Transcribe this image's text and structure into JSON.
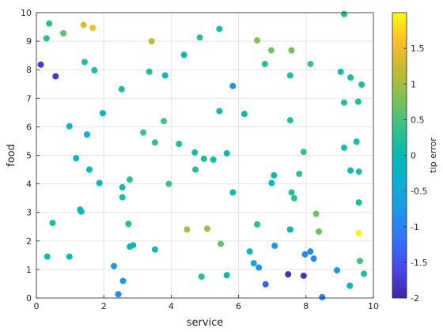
{
  "chart_data": {
    "type": "scatter",
    "xlabel": "service",
    "ylabel": "food",
    "colorbar_label": "tip error",
    "xlim": [
      0,
      10
    ],
    "ylim": [
      0,
      10
    ],
    "clim": [
      -2,
      2
    ],
    "grid": true,
    "x_ticks": [
      0,
      2,
      4,
      6,
      8,
      10
    ],
    "y_ticks": [
      0,
      1,
      2,
      3,
      4,
      5,
      6,
      7,
      8,
      9,
      10
    ],
    "colorbar_ticks": [
      -2,
      -1.5,
      -1,
      -0.5,
      0,
      0.5,
      1,
      1.5
    ],
    "colormap": "parula",
    "points": [
      {
        "x": 0.13,
        "y": 8.18,
        "c": -1.75
      },
      {
        "x": 0.3,
        "y": 9.1,
        "c": 0.25
      },
      {
        "x": 0.38,
        "y": 9.62,
        "c": 0.3
      },
      {
        "x": 0.32,
        "y": 1.45,
        "c": 0.05
      },
      {
        "x": 0.48,
        "y": 2.63,
        "c": 0.15
      },
      {
        "x": 0.57,
        "y": 7.77,
        "c": -1.8
      },
      {
        "x": 0.8,
        "y": 9.28,
        "c": 0.6
      },
      {
        "x": 0.98,
        "y": 6.02,
        "c": -0.1
      },
      {
        "x": 0.98,
        "y": 1.45,
        "c": 0.05
      },
      {
        "x": 1.18,
        "y": 4.9,
        "c": -0.2
      },
      {
        "x": 1.3,
        "y": 3.1,
        "c": -0.1
      },
      {
        "x": 1.33,
        "y": 3.03,
        "c": 0.0
      },
      {
        "x": 1.4,
        "y": 9.57,
        "c": 1.35
      },
      {
        "x": 1.43,
        "y": 8.27,
        "c": 0.2
      },
      {
        "x": 1.5,
        "y": 5.73,
        "c": -0.4
      },
      {
        "x": 1.57,
        "y": 4.5,
        "c": -0.1
      },
      {
        "x": 1.67,
        "y": 9.47,
        "c": 1.6
      },
      {
        "x": 1.72,
        "y": 7.98,
        "c": 0.15
      },
      {
        "x": 1.87,
        "y": 4.03,
        "c": -0.35
      },
      {
        "x": 1.97,
        "y": 6.48,
        "c": -0.2
      },
      {
        "x": 2.3,
        "y": 1.12,
        "c": -0.7
      },
      {
        "x": 2.43,
        "y": 0.13,
        "c": -0.95
      },
      {
        "x": 2.53,
        "y": 7.32,
        "c": 0.15
      },
      {
        "x": 2.55,
        "y": 3.88,
        "c": 0.05
      },
      {
        "x": 2.55,
        "y": 3.53,
        "c": 0.15
      },
      {
        "x": 2.57,
        "y": 0.6,
        "c": -0.75
      },
      {
        "x": 2.73,
        "y": 2.6,
        "c": 0.3
      },
      {
        "x": 2.77,
        "y": 4.15,
        "c": 0.3
      },
      {
        "x": 2.77,
        "y": 1.8,
        "c": 0.05
      },
      {
        "x": 2.87,
        "y": 1.85,
        "c": -0.05
      },
      {
        "x": 3.17,
        "y": 5.8,
        "c": 0.45
      },
      {
        "x": 3.35,
        "y": 7.93,
        "c": 0.2
      },
      {
        "x": 3.42,
        "y": 9.0,
        "c": 1.2
      },
      {
        "x": 3.52,
        "y": 5.45,
        "c": 0.35
      },
      {
        "x": 3.52,
        "y": 1.7,
        "c": 0.0
      },
      {
        "x": 3.78,
        "y": 6.2,
        "c": 0.45
      },
      {
        "x": 3.82,
        "y": 7.8,
        "c": 0.0
      },
      {
        "x": 3.93,
        "y": 4.0,
        "c": 0.45
      },
      {
        "x": 4.23,
        "y": 5.4,
        "c": 0.2
      },
      {
        "x": 4.38,
        "y": 8.52,
        "c": 0.0
      },
      {
        "x": 4.47,
        "y": 2.4,
        "c": 1.0
      },
      {
        "x": 4.7,
        "y": 5.1,
        "c": 0.2
      },
      {
        "x": 4.72,
        "y": 4.5,
        "c": 0.25
      },
      {
        "x": 4.85,
        "y": 9.13,
        "c": 0.25
      },
      {
        "x": 4.9,
        "y": 0.75,
        "c": 0.25
      },
      {
        "x": 4.97,
        "y": 4.88,
        "c": 0.2
      },
      {
        "x": 5.07,
        "y": 2.43,
        "c": 1.0
      },
      {
        "x": 5.25,
        "y": 4.85,
        "c": 0.1
      },
      {
        "x": 5.43,
        "y": 9.43,
        "c": 0.15
      },
      {
        "x": 5.43,
        "y": 6.55,
        "c": 0.1
      },
      {
        "x": 5.47,
        "y": 1.9,
        "c": 0.65
      },
      {
        "x": 5.65,
        "y": 5.07,
        "c": 0.05
      },
      {
        "x": 5.65,
        "y": 0.8,
        "c": 0.0
      },
      {
        "x": 5.83,
        "y": 7.43,
        "c": -0.85
      },
      {
        "x": 5.83,
        "y": 3.7,
        "c": 0.05
      },
      {
        "x": 6.17,
        "y": 6.45,
        "c": 0.0
      },
      {
        "x": 6.33,
        "y": 1.63,
        "c": 0.0
      },
      {
        "x": 6.45,
        "y": 1.22,
        "c": -0.55
      },
      {
        "x": 6.55,
        "y": 9.03,
        "c": 0.85
      },
      {
        "x": 6.55,
        "y": 2.58,
        "c": 0.3
      },
      {
        "x": 6.6,
        "y": 1.07,
        "c": -0.75
      },
      {
        "x": 6.78,
        "y": 8.2,
        "c": 0.3
      },
      {
        "x": 6.8,
        "y": 0.48,
        "c": -1.35
      },
      {
        "x": 6.97,
        "y": 8.68,
        "c": 0.75
      },
      {
        "x": 6.98,
        "y": 4.03,
        "c": 0.0
      },
      {
        "x": 7.05,
        "y": 4.3,
        "c": 0.05
      },
      {
        "x": 7.07,
        "y": 1.83,
        "c": -0.7
      },
      {
        "x": 7.47,
        "y": 0.83,
        "c": -1.85
      },
      {
        "x": 7.53,
        "y": 7.8,
        "c": 0.25
      },
      {
        "x": 7.53,
        "y": 6.23,
        "c": 0.25
      },
      {
        "x": 7.53,
        "y": 2.4,
        "c": 0.0
      },
      {
        "x": 7.57,
        "y": 8.68,
        "c": 0.75
      },
      {
        "x": 7.57,
        "y": 3.7,
        "c": 0.25
      },
      {
        "x": 7.65,
        "y": 3.5,
        "c": 0.3
      },
      {
        "x": 7.8,
        "y": 4.35,
        "c": 0.35
      },
      {
        "x": 7.93,
        "y": 5.12,
        "c": 0.4
      },
      {
        "x": 7.93,
        "y": 0.78,
        "c": -1.85
      },
      {
        "x": 7.97,
        "y": 1.53,
        "c": -0.9
      },
      {
        "x": 8.13,
        "y": 8.2,
        "c": 0.45
      },
      {
        "x": 8.13,
        "y": 1.63,
        "c": -0.95
      },
      {
        "x": 8.23,
        "y": 1.38,
        "c": -0.95
      },
      {
        "x": 8.3,
        "y": 2.95,
        "c": 0.65
      },
      {
        "x": 8.38,
        "y": 2.33,
        "c": 0.7
      },
      {
        "x": 8.48,
        "y": 0.03,
        "c": -1.05
      },
      {
        "x": 8.92,
        "y": 0.97,
        "c": -0.75
      },
      {
        "x": 9.03,
        "y": 7.93,
        "c": 0.15
      },
      {
        "x": 9.13,
        "y": 9.95,
        "c": 0.25
      },
      {
        "x": 9.13,
        "y": 6.85,
        "c": 0.2
      },
      {
        "x": 9.13,
        "y": 5.27,
        "c": 0.15
      },
      {
        "x": 9.3,
        "y": 0.43,
        "c": -0.15
      },
      {
        "x": 9.32,
        "y": 7.73,
        "c": 0.15
      },
      {
        "x": 9.32,
        "y": 4.47,
        "c": 0.05
      },
      {
        "x": 9.5,
        "y": 5.48,
        "c": 0.1
      },
      {
        "x": 9.55,
        "y": 6.88,
        "c": 0.15
      },
      {
        "x": 9.57,
        "y": 4.43,
        "c": 0.15
      },
      {
        "x": 9.57,
        "y": 3.35,
        "c": 0.15
      },
      {
        "x": 9.57,
        "y": 2.28,
        "c": 1.95
      },
      {
        "x": 9.6,
        "y": 1.3,
        "c": 0.5
      },
      {
        "x": 9.65,
        "y": 7.48,
        "c": 0.2
      },
      {
        "x": 9.72,
        "y": 0.85,
        "c": 0.15
      }
    ]
  }
}
